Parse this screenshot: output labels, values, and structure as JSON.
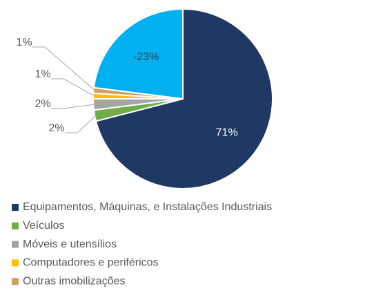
{
  "chart_data": {
    "type": "pie",
    "categories": [
      "Equipamentos, Máquinas, e Instalações Industriais",
      "Veículos",
      "Móveis e utensílios",
      "Computadores e periféricos",
      "Outras imobilizações",
      null
    ],
    "values": [
      71,
      2,
      2,
      1,
      1,
      -23
    ],
    "value_labels": [
      "71%",
      "2%",
      "2%",
      "1%",
      "1%",
      "-23%"
    ],
    "colors": [
      "#1f3864",
      "#70ad47",
      "#a5a5a5",
      "#ffc000",
      "#d0a060",
      "#00b0f0"
    ],
    "legend": "bottom"
  }
}
